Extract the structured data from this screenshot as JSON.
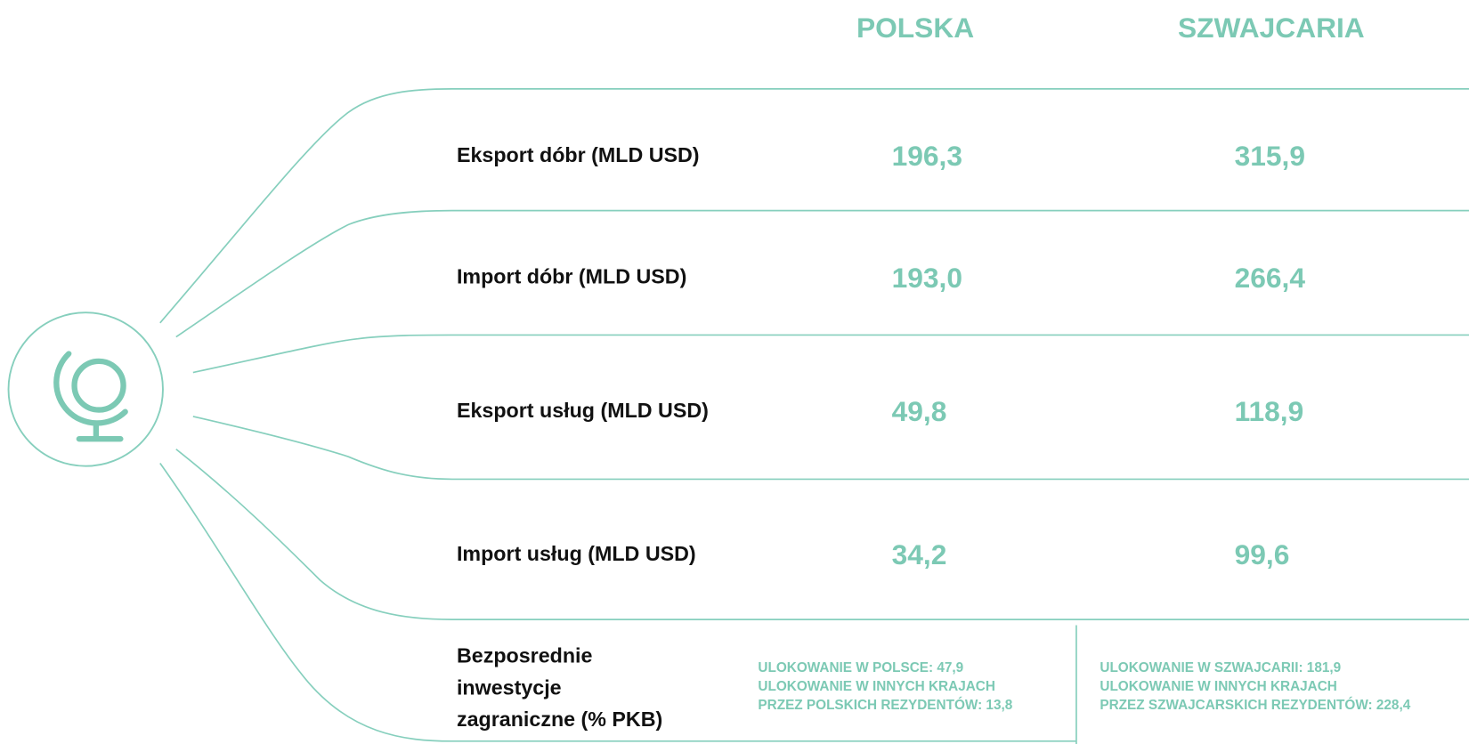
{
  "columns": [
    "POLSKA",
    "SZWAJCARIA"
  ],
  "rows": [
    {
      "label": "Eksport dóbr (MLD USD)",
      "values": [
        "196,3",
        "315,9"
      ]
    },
    {
      "label": "Import dóbr (MLD USD)",
      "values": [
        "193,0",
        "266,4"
      ]
    },
    {
      "label": "Eksport usług (MLD USD)",
      "values": [
        "49,8",
        "118,9"
      ]
    },
    {
      "label": "Import usług (MLD USD)",
      "values": [
        "34,2",
        "99,6"
      ]
    }
  ],
  "fdi": {
    "label_lines": [
      "Bezposrednie",
      "inwestycje",
      "zagraniczne (% PKB)"
    ],
    "notes": [
      [
        "ULOKOWANIE W POLSCE: 47,9",
        "ULOKOWANIE W INNYCH KRAJACH",
        "PRZEZ POLSKICH REZYDENTÓW: 13,8"
      ],
      [
        "ULOKOWANIE W SZWAJCARII: 181,9",
        "ULOKOWANIE W INNYCH KRAJACH",
        "PRZEZ SZWAJCARSKICH REZYDENTÓW: 228,4"
      ]
    ]
  }
}
